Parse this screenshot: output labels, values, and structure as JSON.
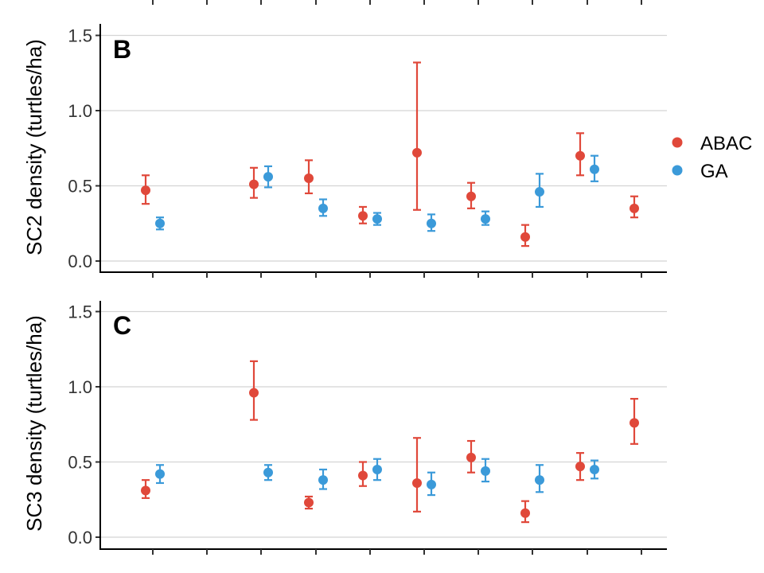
{
  "legend": {
    "items": [
      {
        "label": "ABAC",
        "color": "#E0483A"
      },
      {
        "label": "GA",
        "color": "#3B9AD9"
      }
    ]
  },
  "chart_data": [
    {
      "type": "scatter",
      "panel": "B",
      "ylabel": "SC2 density (turtles/ha)",
      "ylim": [
        0,
        1.55
      ],
      "yticks": [
        0.0,
        0.5,
        1.0,
        1.5
      ],
      "ytick_labels": [
        "0.0",
        "0.5",
        "1.0",
        "1.5"
      ],
      "grid": true,
      "legend_position": "right",
      "series": [
        {
          "name": "ABAC",
          "color": "#E0483A",
          "points": [
            {
              "x": 1,
              "y": 0.47,
              "lo": 0.38,
              "hi": 0.57
            },
            {
              "x": 3,
              "y": 0.51,
              "lo": 0.42,
              "hi": 0.62
            },
            {
              "x": 4,
              "y": 0.55,
              "lo": 0.45,
              "hi": 0.67
            },
            {
              "x": 5,
              "y": 0.3,
              "lo": 0.25,
              "hi": 0.36
            },
            {
              "x": 6,
              "y": 0.72,
              "lo": 0.34,
              "hi": 1.32
            },
            {
              "x": 7,
              "y": 0.43,
              "lo": 0.35,
              "hi": 0.52
            },
            {
              "x": 8,
              "y": 0.16,
              "lo": 0.1,
              "hi": 0.24
            },
            {
              "x": 9,
              "y": 0.7,
              "lo": 0.57,
              "hi": 0.85
            },
            {
              "x": 10,
              "y": 0.35,
              "lo": 0.29,
              "hi": 0.43
            }
          ]
        },
        {
          "name": "GA",
          "color": "#3B9AD9",
          "points": [
            {
              "x": 1,
              "y": 0.25,
              "lo": 0.21,
              "hi": 0.29
            },
            {
              "x": 3,
              "y": 0.56,
              "lo": 0.49,
              "hi": 0.63
            },
            {
              "x": 4,
              "y": 0.35,
              "lo": 0.3,
              "hi": 0.41
            },
            {
              "x": 5,
              "y": 0.28,
              "lo": 0.24,
              "hi": 0.32
            },
            {
              "x": 6,
              "y": 0.25,
              "lo": 0.2,
              "hi": 0.31
            },
            {
              "x": 7,
              "y": 0.28,
              "lo": 0.24,
              "hi": 0.33
            },
            {
              "x": 8,
              "y": 0.46,
              "lo": 0.36,
              "hi": 0.58
            },
            {
              "x": 9,
              "y": 0.61,
              "lo": 0.53,
              "hi": 0.7
            }
          ]
        }
      ]
    },
    {
      "type": "scatter",
      "panel": "C",
      "ylabel": "SC3 density (turtles/ha)",
      "ylim": [
        0,
        1.55
      ],
      "yticks": [
        0.0,
        0.5,
        1.0,
        1.5
      ],
      "ytick_labels": [
        "0.0",
        "0.5",
        "1.0",
        "1.5"
      ],
      "grid": true,
      "legend_position": "right",
      "series": [
        {
          "name": "ABAC",
          "color": "#E0483A",
          "points": [
            {
              "x": 1,
              "y": 0.31,
              "lo": 0.26,
              "hi": 0.38
            },
            {
              "x": 3,
              "y": 0.96,
              "lo": 0.78,
              "hi": 1.17
            },
            {
              "x": 4,
              "y": 0.23,
              "lo": 0.19,
              "hi": 0.27
            },
            {
              "x": 5,
              "y": 0.41,
              "lo": 0.34,
              "hi": 0.5
            },
            {
              "x": 6,
              "y": 0.36,
              "lo": 0.17,
              "hi": 0.66
            },
            {
              "x": 7,
              "y": 0.53,
              "lo": 0.43,
              "hi": 0.64
            },
            {
              "x": 8,
              "y": 0.16,
              "lo": 0.1,
              "hi": 0.24
            },
            {
              "x": 9,
              "y": 0.47,
              "lo": 0.38,
              "hi": 0.56
            },
            {
              "x": 10,
              "y": 0.76,
              "lo": 0.62,
              "hi": 0.92
            }
          ]
        },
        {
          "name": "GA",
          "color": "#3B9AD9",
          "points": [
            {
              "x": 1,
              "y": 0.42,
              "lo": 0.36,
              "hi": 0.48
            },
            {
              "x": 3,
              "y": 0.43,
              "lo": 0.38,
              "hi": 0.48
            },
            {
              "x": 4,
              "y": 0.38,
              "lo": 0.32,
              "hi": 0.45
            },
            {
              "x": 5,
              "y": 0.45,
              "lo": 0.38,
              "hi": 0.52
            },
            {
              "x": 6,
              "y": 0.35,
              "lo": 0.28,
              "hi": 0.43
            },
            {
              "x": 7,
              "y": 0.44,
              "lo": 0.37,
              "hi": 0.52
            },
            {
              "x": 8,
              "y": 0.38,
              "lo": 0.3,
              "hi": 0.48
            },
            {
              "x": 9,
              "y": 0.45,
              "lo": 0.39,
              "hi": 0.51
            }
          ]
        }
      ]
    }
  ]
}
